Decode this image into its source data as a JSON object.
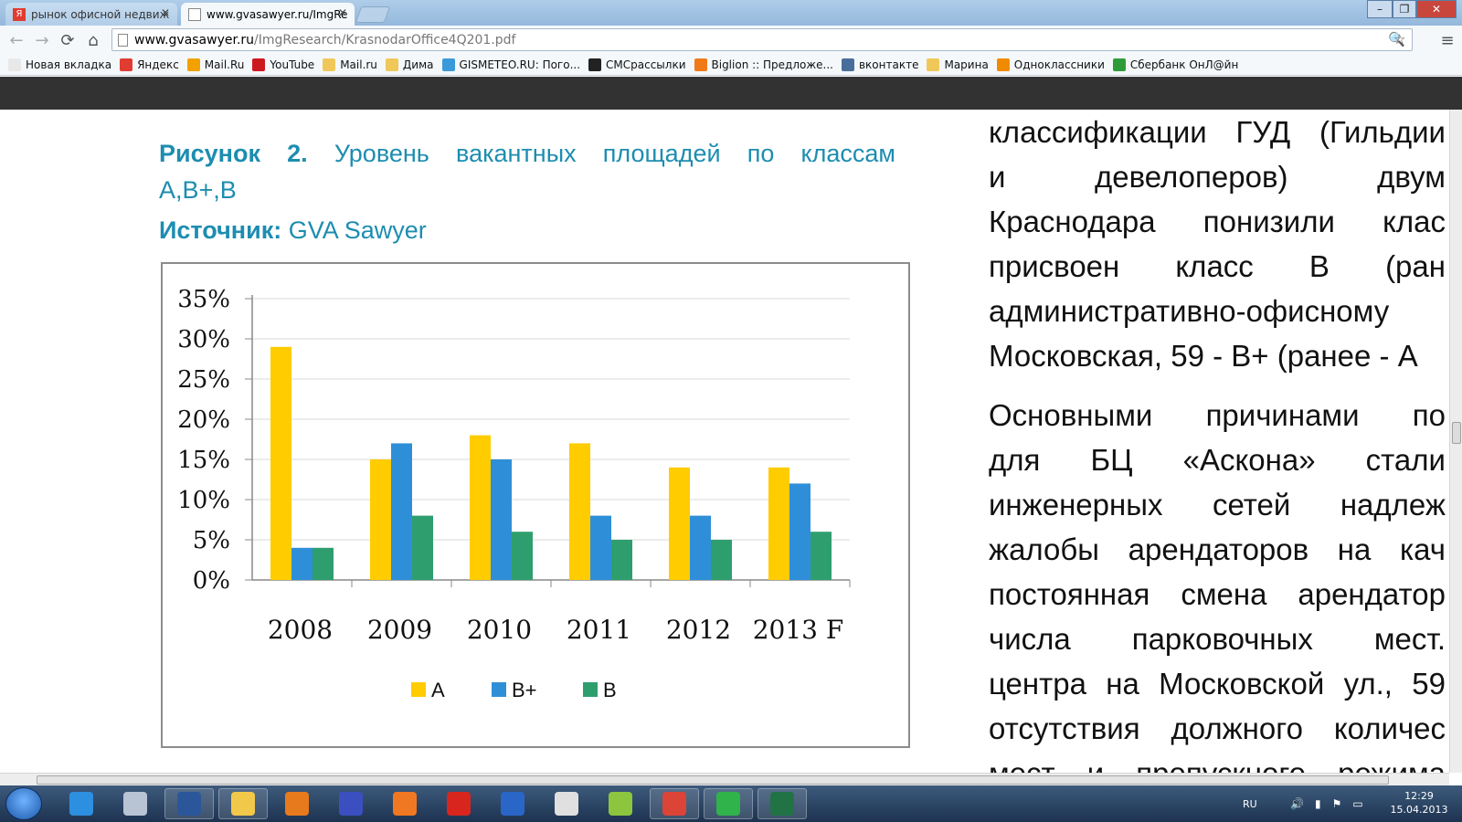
{
  "browser": {
    "tabs": [
      {
        "title": "рынок офисной недвиж",
        "active": false
      },
      {
        "title": "www.gvasawyer.ru/ImgRe",
        "active": true
      }
    ],
    "url_domain": "www.gvasawyer.ru",
    "url_path": "/ImgResearch/KrasnodarOffice4Q201.pdf",
    "bookmarks": [
      {
        "label": "Новая вкладка",
        "icon": "tab-icon",
        "color": "#e8e8e8"
      },
      {
        "label": "Яндекс",
        "icon": "yandex-icon",
        "color": "#e03c31"
      },
      {
        "label": "Mail.Ru",
        "icon": "mailru-icon",
        "color": "#f2a100"
      },
      {
        "label": "YouTube",
        "icon": "youtube-icon",
        "color": "#cc181e"
      },
      {
        "label": "Mail.ru",
        "icon": "folder-icon",
        "color": "#f0c85a"
      },
      {
        "label": "Дима",
        "icon": "folder-icon",
        "color": "#f0c85a"
      },
      {
        "label": "GISMETEO.RU: Пого...",
        "icon": "weather-icon",
        "color": "#3a9ad9"
      },
      {
        "label": "СМСрассылки",
        "icon": "sms-icon",
        "color": "#222222"
      },
      {
        "label": "Biglion :: Предложе...",
        "icon": "biglion-icon",
        "color": "#f07a18"
      },
      {
        "label": "вконтакте",
        "icon": "vk-icon",
        "color": "#4a6e9b"
      },
      {
        "label": "Марина",
        "icon": "folder-icon",
        "color": "#f0c85a"
      },
      {
        "label": "Одноклассники",
        "icon": "odnoklassniki-icon",
        "color": "#f08a00"
      },
      {
        "label": "Сбербанк ОнЛ@йн",
        "icon": "sberbank-icon",
        "color": "#2e9b3a"
      }
    ]
  },
  "document": {
    "figure_label": "Рисунок 2.",
    "figure_title": "Уровень вакантных площадей по классам А,В+,В",
    "source_label": "Источник:",
    "source_value": "GVA Sawyer",
    "right_lines": [
      [
        "классификации",
        "ГУД",
        "(Гильдии"
      ],
      [
        "и",
        "девелоперов)",
        "двум"
      ],
      [
        "Краснодара",
        "понизили",
        "клас"
      ],
      [
        "присвоен",
        "класс",
        "В",
        "(ран"
      ],
      [
        "административно-офисному"
      ],
      [
        "Московская, 59 - В+ (ранее - А"
      ],
      [],
      [
        "Основными",
        "причинами",
        "по"
      ],
      [
        "для",
        "БЦ",
        "«Аскона»",
        "стали"
      ],
      [
        "инженерных",
        "сетей",
        "надлеж"
      ],
      [
        "жалобы",
        "арендаторов",
        "на",
        "кач"
      ],
      [
        "постоянная",
        "смена",
        "арендатор"
      ],
      [
        "числа",
        "парковочных",
        "мест."
      ],
      [
        "центра",
        "на",
        "Московской",
        "ул.,",
        "59"
      ],
      [
        "отсутствия",
        "должного",
        "количес"
      ],
      [
        "мест",
        "и",
        "пропускного",
        "режима"
      ]
    ]
  },
  "chart_data": {
    "type": "bar",
    "categories": [
      "2008",
      "2009",
      "2010",
      "2011",
      "2012",
      "2013 F"
    ],
    "series": [
      {
        "name": "А",
        "color": "#ffcc00",
        "values": [
          29,
          15,
          18,
          17,
          14,
          14
        ]
      },
      {
        "name": "В+",
        "color": "#2e8fd8",
        "values": [
          4,
          17,
          15,
          8,
          8,
          12
        ]
      },
      {
        "name": "В",
        "color": "#2f9e6e",
        "values": [
          4,
          8,
          6,
          5,
          5,
          6
        ]
      }
    ],
    "y_ticks": [
      "0%",
      "5%",
      "10%",
      "15%",
      "20%",
      "25%",
      "30%",
      "35%"
    ],
    "ylim": [
      0,
      35
    ],
    "grid": true,
    "legend": "bottom"
  },
  "taskbar": {
    "apps": [
      {
        "name": "internet-explorer-icon",
        "color": "#2d8fe0",
        "open": false
      },
      {
        "name": "calculator-icon",
        "color": "#b8c4d4",
        "open": false
      },
      {
        "name": "word-icon",
        "color": "#2b579a",
        "open": true
      },
      {
        "name": "explorer-folder-icon",
        "color": "#f2c84b",
        "open": true
      },
      {
        "name": "eye-app-icon",
        "color": "#e87a1e",
        "open": false
      },
      {
        "name": "save-disk-icon",
        "color": "#3b4fc0",
        "open": false
      },
      {
        "name": "media-player-icon",
        "color": "#f07822",
        "open": false
      },
      {
        "name": "pin-icon",
        "color": "#d8261e",
        "open": false
      },
      {
        "name": "agent-icon",
        "color": "#2a66c8",
        "open": false
      },
      {
        "name": "clock-app-icon",
        "color": "#e0e0e0",
        "open": false
      },
      {
        "name": "green-app-icon",
        "color": "#8cc63f",
        "open": false
      },
      {
        "name": "chrome-icon",
        "color": "#db4437",
        "open": true
      },
      {
        "name": "mail-agent-icon",
        "color": "#2fb34a",
        "open": true
      },
      {
        "name": "excel-icon",
        "color": "#217346",
        "open": true
      }
    ],
    "language": "RU",
    "time": "12:29",
    "date": "15.04.2013"
  }
}
